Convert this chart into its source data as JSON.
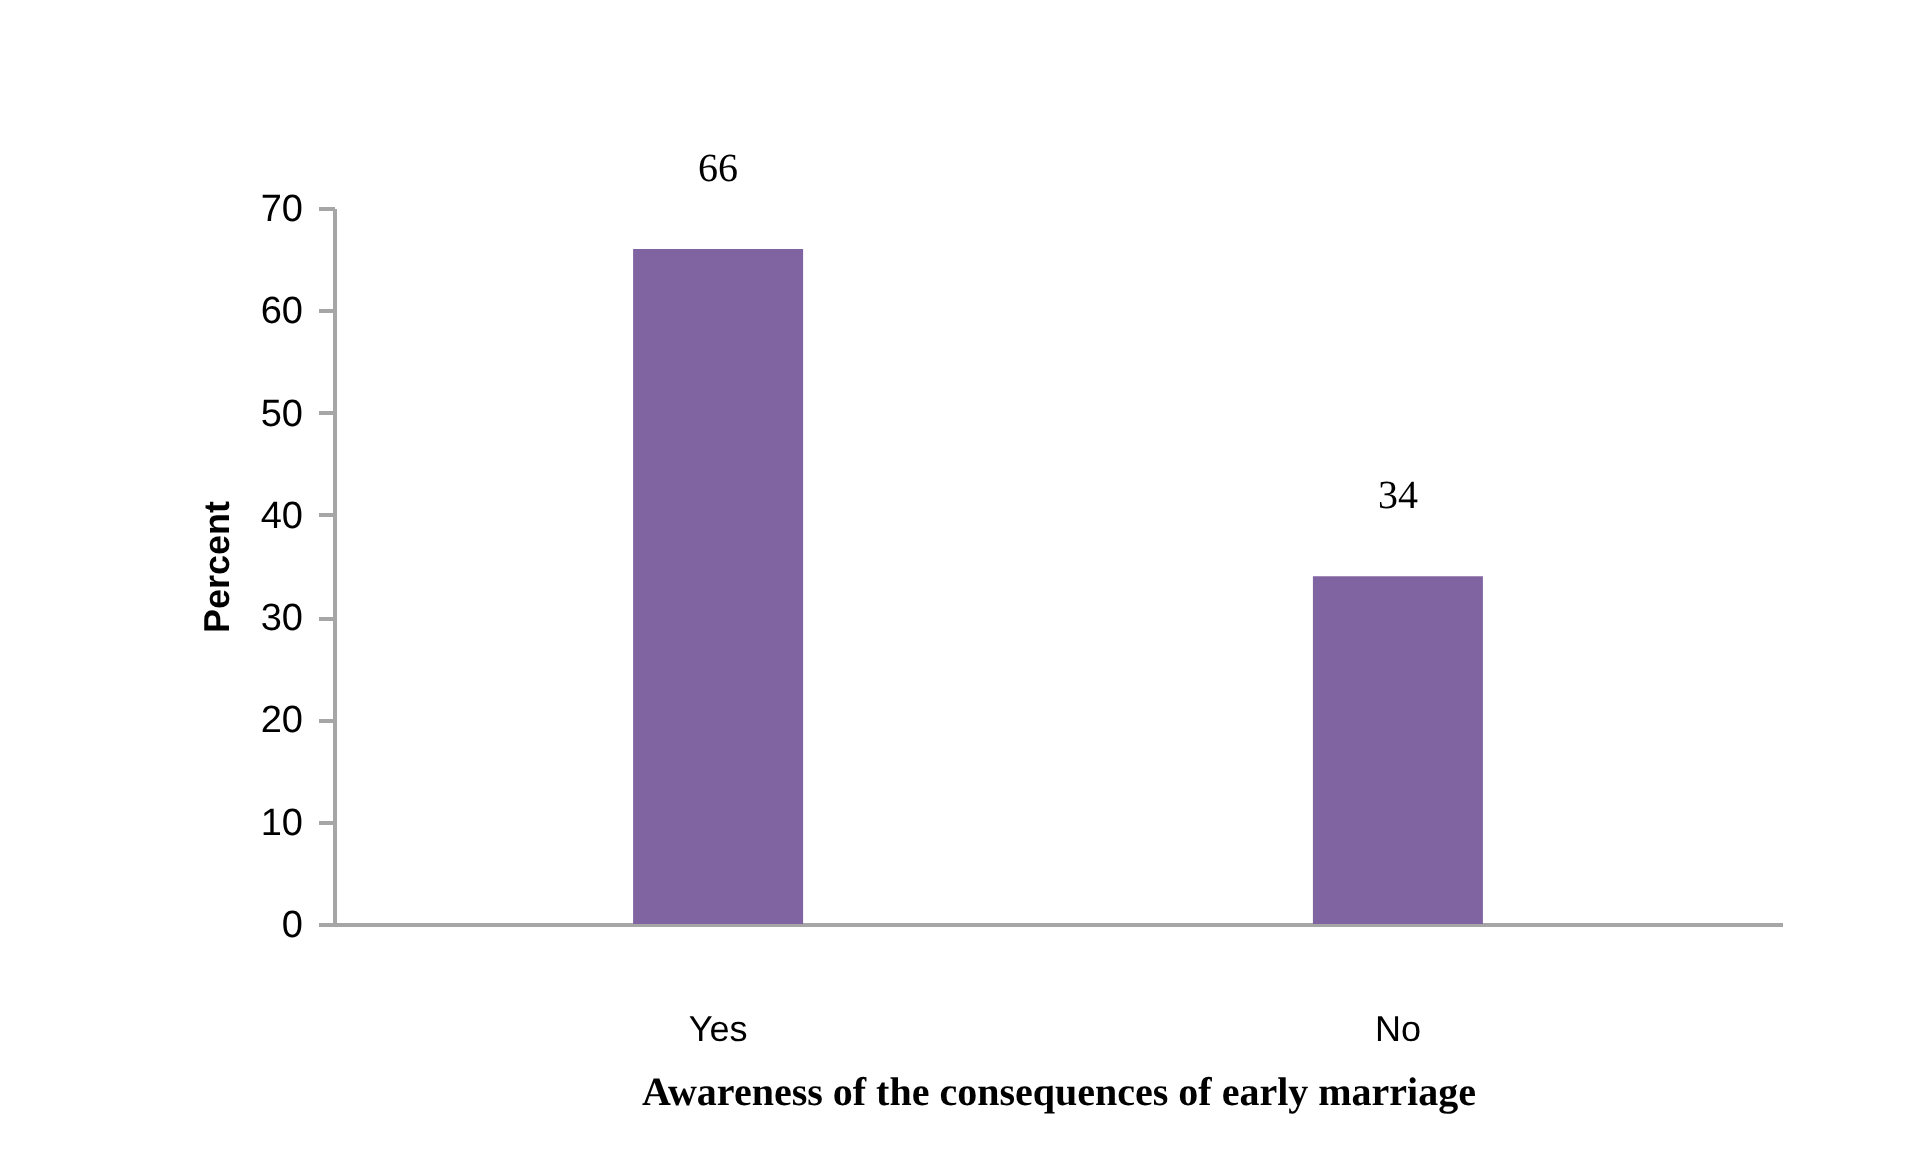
{
  "chart_data": {
    "type": "bar",
    "xlabel": "Awareness of the consequences of early marriage",
    "ylabel": "Percent",
    "categories": [
      "Yes",
      "No"
    ],
    "values": [
      66,
      34
    ],
    "color": "#8064a2",
    "ylim": [
      0,
      70
    ],
    "yticks": [
      0,
      10,
      20,
      30,
      40,
      50,
      60,
      70
    ],
    "grid": false,
    "data_labels": true
  }
}
